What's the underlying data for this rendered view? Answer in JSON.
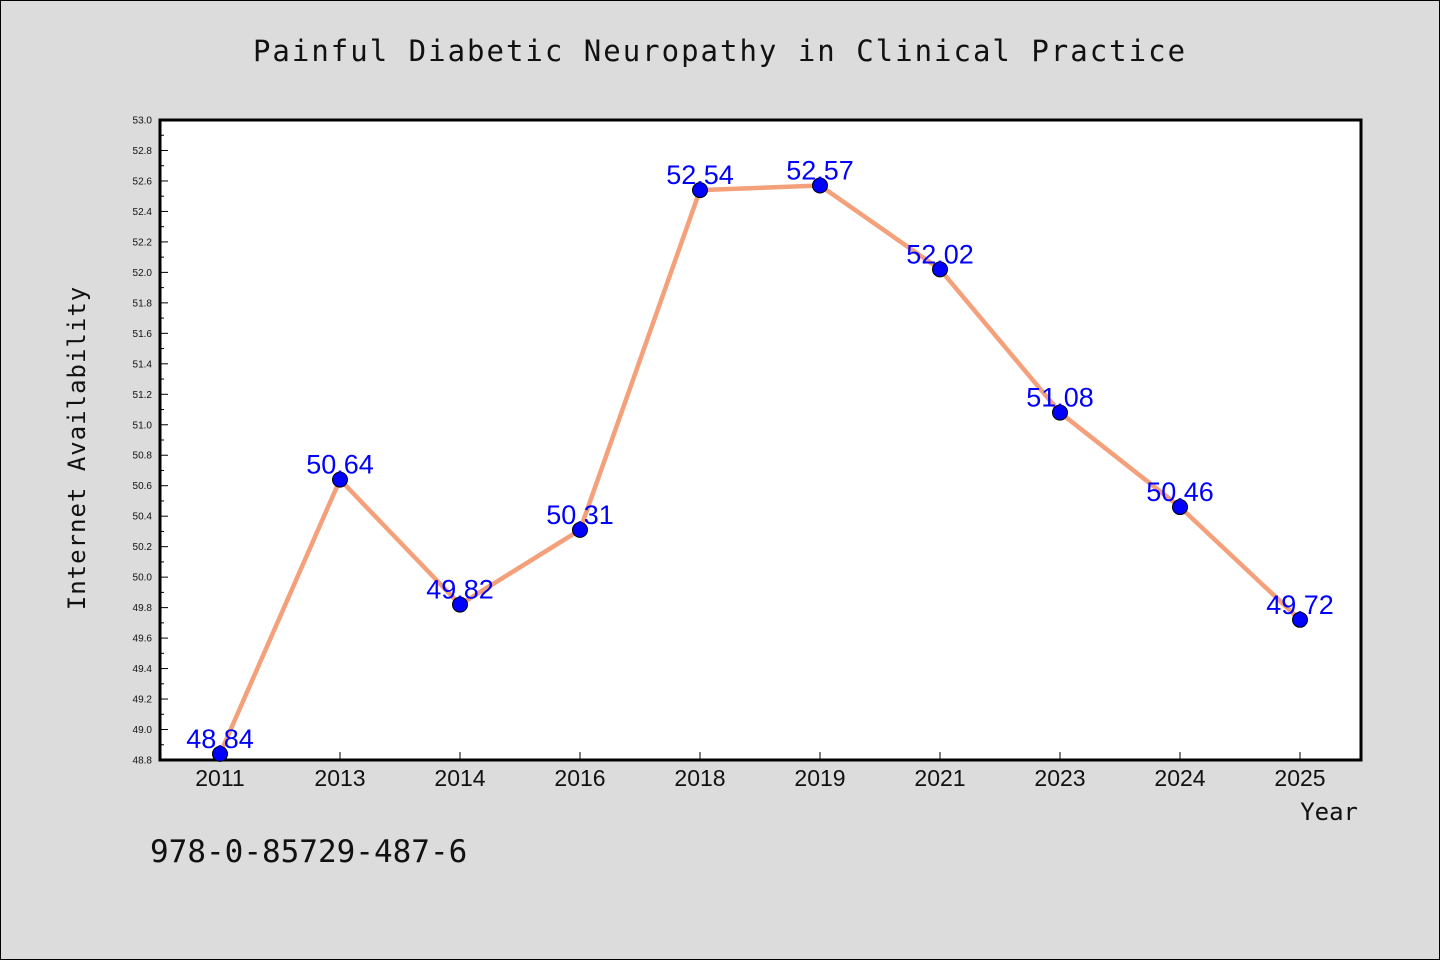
{
  "chart_data": {
    "type": "line",
    "title": "Painful Diabetic Neuropathy in Clinical Practice",
    "xlabel": "Year",
    "ylabel": "Internet Availability",
    "categories": [
      "2011",
      "2013",
      "2014",
      "2016",
      "2018",
      "2019",
      "2021",
      "2023",
      "2024",
      "2025"
    ],
    "values": [
      48.84,
      50.64,
      49.82,
      50.31,
      52.54,
      52.57,
      52.02,
      51.08,
      50.46,
      49.72
    ],
    "data_labels": [
      "48.84",
      "50.64",
      "49.82",
      "50.31",
      "52.54",
      "52.57",
      "52.02",
      "51.08",
      "50.46",
      "49.72"
    ],
    "ylim": [
      48.8,
      53.0
    ],
    "ytick_labels": [
      "48.8",
      "49.0",
      "49.2",
      "49.4",
      "49.6",
      "49.8",
      "50.0",
      "50.2",
      "50.4",
      "50.6",
      "50.8",
      "51.0",
      "51.2",
      "51.4",
      "51.6",
      "51.8",
      "52.0",
      "52.2",
      "52.4",
      "52.6",
      "52.8",
      "53.0"
    ],
    "grid": false,
    "line_color": "#f4a07a",
    "marker_color": "#0000ff",
    "label_color": "#0000ff"
  },
  "footer": {
    "isbn": "978-0-85729-487-6"
  }
}
